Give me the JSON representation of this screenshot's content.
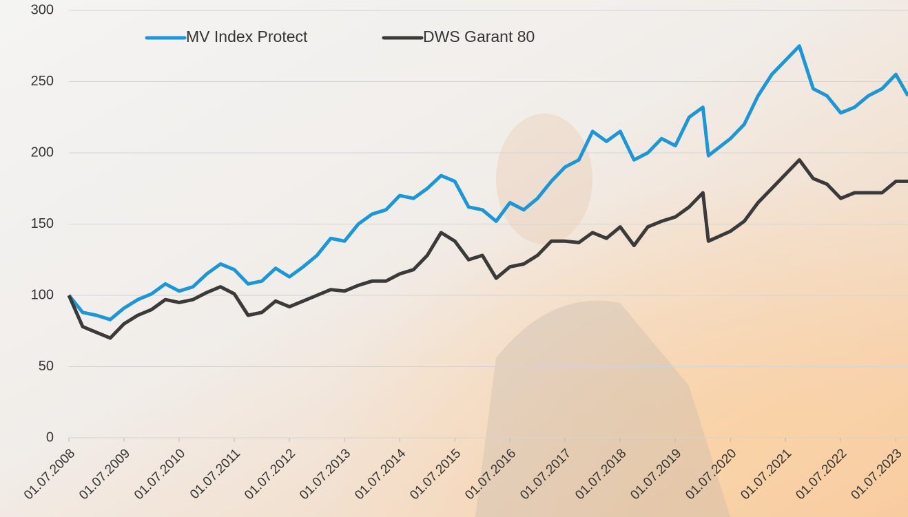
{
  "chart_data": {
    "type": "line",
    "x": [
      2008.5,
      2008.75,
      2009,
      2009.25,
      2009.5,
      2009.75,
      2010,
      2010.25,
      2010.5,
      2010.75,
      2011,
      2011.25,
      2011.5,
      2011.75,
      2012,
      2012.25,
      2012.5,
      2012.75,
      2013,
      2013.25,
      2013.5,
      2013.75,
      2014,
      2014.25,
      2014.5,
      2014.75,
      2015,
      2015.25,
      2015.5,
      2015.75,
      2016,
      2016.25,
      2016.5,
      2016.75,
      2017,
      2017.25,
      2017.5,
      2017.75,
      2018,
      2018.25,
      2018.5,
      2018.75,
      2019,
      2019.25,
      2019.5,
      2019.75,
      2020,
      2020.1,
      2020.5,
      2020.75,
      2021,
      2021.25,
      2021.5,
      2021.75,
      2022,
      2022.25,
      2022.5,
      2022.75,
      2023,
      2023.25,
      2023.5,
      2023.72
    ],
    "series": [
      {
        "name": "MV Index Protect",
        "color": "#1b96d6",
        "values": [
          100,
          88,
          86,
          83,
          91,
          97,
          101,
          108,
          103,
          106,
          115,
          122,
          118,
          108,
          110,
          119,
          113,
          120,
          128,
          140,
          138,
          150,
          157,
          160,
          170,
          168,
          175,
          184,
          180,
          162,
          160,
          152,
          165,
          160,
          168,
          180,
          190,
          195,
          215,
          208,
          215,
          195,
          200,
          210,
          205,
          225,
          232,
          198,
          210,
          220,
          240,
          255,
          265,
          275,
          245,
          240,
          228,
          232,
          240,
          245,
          255,
          240
        ]
      },
      {
        "name": "DWS Garant 80",
        "color": "#3a3a3a",
        "values": [
          100,
          78,
          74,
          70,
          80,
          86,
          90,
          97,
          95,
          97,
          102,
          106,
          101,
          86,
          88,
          96,
          92,
          96,
          100,
          104,
          103,
          107,
          110,
          110,
          115,
          118,
          128,
          144,
          138,
          125,
          128,
          112,
          120,
          122,
          128,
          138,
          138,
          137,
          144,
          140,
          148,
          135,
          148,
          152,
          155,
          162,
          172,
          138,
          145,
          152,
          165,
          175,
          185,
          195,
          182,
          178,
          168,
          172,
          172,
          172,
          180,
          180
        ]
      }
    ],
    "xlim": [
      2008.5,
      2023.72
    ],
    "xticks": [
      {
        "value": 2008.5,
        "label": "01.07.2008"
      },
      {
        "value": 2009.5,
        "label": "01.07.2009"
      },
      {
        "value": 2010.5,
        "label": "01.07.2010"
      },
      {
        "value": 2011.5,
        "label": "01.07.2011"
      },
      {
        "value": 2012.5,
        "label": "01.07.2012"
      },
      {
        "value": 2013.5,
        "label": "01.07.2013"
      },
      {
        "value": 2014.5,
        "label": "01.07.2014"
      },
      {
        "value": 2015.5,
        "label": "01.07.2015"
      },
      {
        "value": 2016.5,
        "label": "01.07.2016"
      },
      {
        "value": 2017.5,
        "label": "01.07.2017"
      },
      {
        "value": 2018.5,
        "label": "01.07.2018"
      },
      {
        "value": 2019.5,
        "label": "01.07.2019"
      },
      {
        "value": 2020.5,
        "label": "01.07.2020"
      },
      {
        "value": 2021.5,
        "label": "01.07.2021"
      },
      {
        "value": 2022.5,
        "label": "01.07.2022"
      },
      {
        "value": 2023.5,
        "label": "01.07.2023"
      }
    ],
    "ylim": [
      0,
      300
    ],
    "yticks": [
      0,
      50,
      100,
      150,
      200,
      250,
      300
    ],
    "grid": true,
    "legend": "top"
  }
}
